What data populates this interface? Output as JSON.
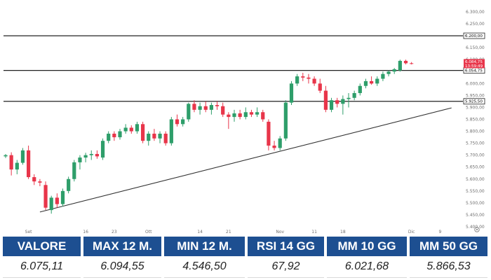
{
  "chart_data": {
    "type": "candlestick",
    "y_ticks": [
      "6.300,00",
      "6.250,00",
      "6.200,00",
      "6.150,00",
      "6.100,00",
      "6.050,00",
      "6.000,00",
      "5.950,00",
      "5.900,00",
      "5.850,00",
      "5.800,00",
      "5.750,00",
      "5.700,00",
      "5.650,00",
      "5.600,00",
      "5.550,00",
      "5.500,00",
      "5.450,00",
      "5.400,00"
    ],
    "y_tick_values": [
      6300,
      6250,
      6200,
      6150,
      6100,
      6050,
      6000,
      5950,
      5900,
      5850,
      5800,
      5750,
      5700,
      5650,
      5600,
      5550,
      5500,
      5450,
      5400
    ],
    "ylim": [
      5390,
      6325
    ],
    "x_ticks": [
      {
        "label": "Set",
        "index": 4
      },
      {
        "label": "16",
        "index": 14
      },
      {
        "label": "23",
        "index": 19
      },
      {
        "label": "Ott",
        "index": 25
      },
      {
        "label": "14",
        "index": 34
      },
      {
        "label": "21",
        "index": 39
      },
      {
        "label": "Nov",
        "index": 48
      },
      {
        "label": "11",
        "index": 54
      },
      {
        "label": "18",
        "index": 59
      },
      {
        "label": "Dic",
        "index": 71
      },
      {
        "label": "9",
        "index": 76
      }
    ],
    "levels": [
      {
        "value": 6200.0,
        "label": "6.200,00"
      },
      {
        "value": 6054.75,
        "label": "6.054,75"
      },
      {
        "value": 5925.5,
        "label": "5.925,50"
      }
    ],
    "current_price": {
      "value": 6084.75,
      "label": "6.084,75",
      "countdown": "13:59:49",
      "color": "#e8354a"
    },
    "trendline": {
      "start": {
        "index": 6,
        "value": 5462
      },
      "end": {
        "index": 78,
        "value": 5898
      }
    },
    "colors": {
      "up": "#2e9e6a",
      "down": "#e8354a"
    },
    "candles": [
      {
        "o": 5695,
        "h": 5705,
        "l": 5688,
        "c": 5700
      },
      {
        "o": 5700,
        "h": 5712,
        "l": 5615,
        "c": 5640
      },
      {
        "o": 5640,
        "h": 5680,
        "l": 5620,
        "c": 5668
      },
      {
        "o": 5668,
        "h": 5730,
        "l": 5660,
        "c": 5720
      },
      {
        "o": 5720,
        "h": 5740,
        "l": 5600,
        "c": 5608
      },
      {
        "o": 5608,
        "h": 5620,
        "l": 5575,
        "c": 5590
      },
      {
        "o": 5590,
        "h": 5600,
        "l": 5570,
        "c": 5585
      },
      {
        "o": 5575,
        "h": 5590,
        "l": 5470,
        "c": 5480
      },
      {
        "o": 5470,
        "h": 5530,
        "l": 5455,
        "c": 5522
      },
      {
        "o": 5522,
        "h": 5540,
        "l": 5480,
        "c": 5495
      },
      {
        "o": 5495,
        "h": 5560,
        "l": 5485,
        "c": 5550
      },
      {
        "o": 5550,
        "h": 5610,
        "l": 5540,
        "c": 5600
      },
      {
        "o": 5600,
        "h": 5680,
        "l": 5590,
        "c": 5670
      },
      {
        "o": 5670,
        "h": 5700,
        "l": 5640,
        "c": 5690
      },
      {
        "o": 5690,
        "h": 5710,
        "l": 5670,
        "c": 5700
      },
      {
        "o": 5700,
        "h": 5720,
        "l": 5680,
        "c": 5705
      },
      {
        "o": 5705,
        "h": 5720,
        "l": 5685,
        "c": 5695
      },
      {
        "o": 5690,
        "h": 5770,
        "l": 5680,
        "c": 5760
      },
      {
        "o": 5760,
        "h": 5800,
        "l": 5750,
        "c": 5790
      },
      {
        "o": 5790,
        "h": 5800,
        "l": 5760,
        "c": 5775
      },
      {
        "o": 5775,
        "h": 5810,
        "l": 5765,
        "c": 5800
      },
      {
        "o": 5800,
        "h": 5830,
        "l": 5790,
        "c": 5815
      },
      {
        "o": 5815,
        "h": 5825,
        "l": 5790,
        "c": 5800
      },
      {
        "o": 5800,
        "h": 5840,
        "l": 5790,
        "c": 5830
      },
      {
        "o": 5830,
        "h": 5840,
        "l": 5750,
        "c": 5760
      },
      {
        "o": 5760,
        "h": 5800,
        "l": 5740,
        "c": 5790
      },
      {
        "o": 5790,
        "h": 5810,
        "l": 5760,
        "c": 5770
      },
      {
        "o": 5770,
        "h": 5800,
        "l": 5750,
        "c": 5790
      },
      {
        "o": 5790,
        "h": 5800,
        "l": 5740,
        "c": 5750
      },
      {
        "o": 5750,
        "h": 5860,
        "l": 5740,
        "c": 5850
      },
      {
        "o": 5850,
        "h": 5870,
        "l": 5820,
        "c": 5830
      },
      {
        "o": 5830,
        "h": 5860,
        "l": 5820,
        "c": 5850
      },
      {
        "o": 5850,
        "h": 5920,
        "l": 5840,
        "c": 5915
      },
      {
        "o": 5915,
        "h": 5930,
        "l": 5880,
        "c": 5890
      },
      {
        "o": 5890,
        "h": 5920,
        "l": 5870,
        "c": 5905
      },
      {
        "o": 5905,
        "h": 5925,
        "l": 5880,
        "c": 5890
      },
      {
        "o": 5890,
        "h": 5920,
        "l": 5870,
        "c": 5910
      },
      {
        "o": 5910,
        "h": 5925,
        "l": 5890,
        "c": 5905
      },
      {
        "o": 5905,
        "h": 5920,
        "l": 5860,
        "c": 5870
      },
      {
        "o": 5870,
        "h": 5880,
        "l": 5810,
        "c": 5860
      },
      {
        "o": 5860,
        "h": 5890,
        "l": 5840,
        "c": 5875
      },
      {
        "o": 5875,
        "h": 5890,
        "l": 5850,
        "c": 5860
      },
      {
        "o": 5860,
        "h": 5900,
        "l": 5850,
        "c": 5880
      },
      {
        "o": 5880,
        "h": 5890,
        "l": 5860,
        "c": 5870
      },
      {
        "o": 5870,
        "h": 5900,
        "l": 5860,
        "c": 5880
      },
      {
        "o": 5880,
        "h": 5890,
        "l": 5840,
        "c": 5850
      },
      {
        "o": 5840,
        "h": 5850,
        "l": 5720,
        "c": 5740
      },
      {
        "o": 5740,
        "h": 5760,
        "l": 5720,
        "c": 5730
      },
      {
        "o": 5730,
        "h": 5780,
        "l": 5720,
        "c": 5770
      },
      {
        "o": 5770,
        "h": 5930,
        "l": 5760,
        "c": 5920
      },
      {
        "o": 5920,
        "h": 6010,
        "l": 5910,
        "c": 6000
      },
      {
        "o": 6000,
        "h": 6040,
        "l": 5990,
        "c": 6030
      },
      {
        "o": 6030,
        "h": 6045,
        "l": 6010,
        "c": 6025
      },
      {
        "o": 6025,
        "h": 6040,
        "l": 6000,
        "c": 6020
      },
      {
        "o": 6020,
        "h": 6030,
        "l": 5990,
        "c": 6000
      },
      {
        "o": 6000,
        "h": 6020,
        "l": 5960,
        "c": 5970
      },
      {
        "o": 5970,
        "h": 5990,
        "l": 5880,
        "c": 5890
      },
      {
        "o": 5890,
        "h": 5940,
        "l": 5880,
        "c": 5930
      },
      {
        "o": 5930,
        "h": 5940,
        "l": 5900,
        "c": 5915
      },
      {
        "o": 5915,
        "h": 5950,
        "l": 5870,
        "c": 5935
      },
      {
        "o": 5935,
        "h": 5960,
        "l": 5900,
        "c": 5940
      },
      {
        "o": 5940,
        "h": 5970,
        "l": 5930,
        "c": 5960
      },
      {
        "o": 5960,
        "h": 6000,
        "l": 5950,
        "c": 5990
      },
      {
        "o": 5990,
        "h": 6020,
        "l": 5980,
        "c": 6010
      },
      {
        "o": 6010,
        "h": 6030,
        "l": 5995,
        "c": 6000
      },
      {
        "o": 6000,
        "h": 6030,
        "l": 5990,
        "c": 6020
      },
      {
        "o": 6020,
        "h": 6050,
        "l": 6010,
        "c": 6040
      },
      {
        "o": 6040,
        "h": 6055,
        "l": 6030,
        "c": 6050
      },
      {
        "o": 6050,
        "h": 6065,
        "l": 6040,
        "c": 6060
      },
      {
        "o": 6055,
        "h": 6100,
        "l": 6050,
        "c": 6095
      },
      {
        "o": 6095,
        "h": 6100,
        "l": 6080,
        "c": 6085
      },
      {
        "o": 6085,
        "h": 6090,
        "l": 6080,
        "c": 6084.75
      }
    ]
  },
  "stats": [
    {
      "label": "VALORE",
      "value": "6.075,11"
    },
    {
      "label": "MAX 12 M.",
      "value": "6.094,55"
    },
    {
      "label": "MIN 12 M.",
      "value": "4.546,50"
    },
    {
      "label": "RSI 14 GG",
      "value": "67,92"
    },
    {
      "label": "MM 10 GG",
      "value": "6.021,68"
    },
    {
      "label": "MM 50 GG",
      "value": "5.866,53"
    }
  ],
  "ui": {
    "settings_icon": "gear-icon"
  }
}
